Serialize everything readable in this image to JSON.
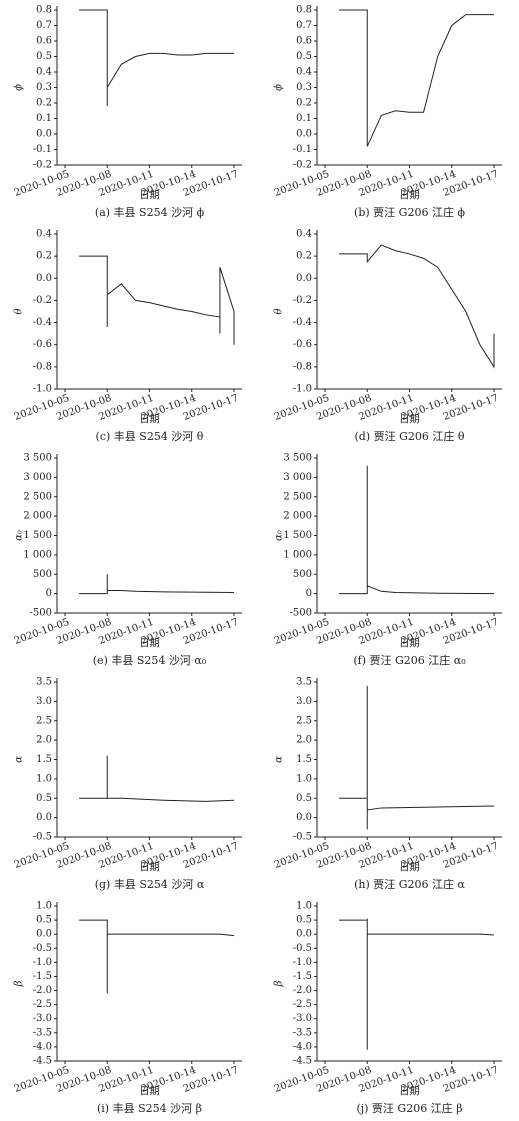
{
  "chart_data": [
    {
      "type": "line",
      "title": "(a) 丰县 S254 沙河 ϕ",
      "xlabel": "日期",
      "ylabel": "ϕ",
      "color": "#222222",
      "x": [
        "2020-10-06",
        "2020-10-08",
        "2020-10-08",
        "2020-10-08",
        "2020-10-09",
        "2020-10-10",
        "2020-10-11",
        "2020-10-12",
        "2020-10-13",
        "2020-10-14",
        "2020-10-15",
        "2020-10-16",
        "2020-10-17"
      ],
      "values": [
        0.8,
        0.8,
        0.18,
        0.3,
        0.45,
        0.5,
        0.52,
        0.52,
        0.51,
        0.51,
        0.52,
        0.52,
        0.52
      ],
      "ylim": [
        -0.2,
        0.8
      ],
      "yticks": [
        -0.2,
        -0.1,
        {
          "value": 0,
          "label": "0.0"
        },
        0.1,
        0.2,
        0.3,
        0.4,
        0.5,
        0.6,
        0.7,
        0.8
      ],
      "xlim": [
        "2020-10-05",
        "2020-10-17"
      ],
      "xticks": [
        "2020-10-05",
        "2020-10-08",
        "2020-10-11",
        "2020-10-14",
        "2020-10-17"
      ]
    },
    {
      "type": "line",
      "title": "(b) 贾汪 G206 江庄 ϕ",
      "xlabel": "日期",
      "ylabel": "ϕ",
      "color": "#222222",
      "x": [
        "2020-10-06",
        "2020-10-08",
        "2020-10-08",
        "2020-10-09",
        "2020-10-10",
        "2020-10-11",
        "2020-10-12",
        "2020-10-13",
        "2020-10-14",
        "2020-10-15",
        "2020-10-16",
        "2020-10-17"
      ],
      "values": [
        0.8,
        0.8,
        -0.08,
        0.12,
        0.15,
        0.14,
        0.14,
        0.5,
        0.7,
        0.77,
        0.77,
        0.77
      ],
      "ylim": [
        -0.2,
        0.8
      ],
      "yticks": [
        -0.2,
        -0.1,
        {
          "value": 0,
          "label": "0.0"
        },
        0.1,
        0.2,
        0.3,
        0.4,
        0.5,
        0.6,
        0.7,
        0.8
      ],
      "xlim": [
        "2020-10-05",
        "2020-10-17"
      ],
      "xticks": [
        "2020-10-05",
        "2020-10-08",
        "2020-10-11",
        "2020-10-14",
        "2020-10-17"
      ]
    },
    {
      "type": "line",
      "title": "(c) 丰县 S254 沙河 θ",
      "xlabel": "日期",
      "ylabel": "θ",
      "color": "#222222",
      "x": [
        "2020-10-06",
        "2020-10-08",
        "2020-10-08",
        "2020-10-08",
        "2020-10-09",
        "2020-10-10",
        "2020-10-11",
        "2020-10-12",
        "2020-10-13",
        "2020-10-14",
        "2020-10-15",
        "2020-10-16",
        "2020-10-16",
        "2020-10-16",
        "2020-10-17",
        "2020-10-17"
      ],
      "values": [
        0.2,
        0.2,
        -0.44,
        -0.15,
        -0.05,
        -0.2,
        -0.22,
        -0.25,
        -0.28,
        -0.3,
        -0.33,
        -0.35,
        -0.5,
        0.1,
        -0.3,
        -0.6
      ],
      "ylim": [
        -1.0,
        0.4
      ],
      "yticks": [
        {
          "value": -1,
          "label": "-1.0"
        },
        -0.8,
        -0.6,
        -0.4,
        -0.2,
        {
          "value": 0,
          "label": "0.0"
        },
        0.2,
        0.4
      ],
      "xlim": [
        "2020-10-05",
        "2020-10-17"
      ],
      "xticks": [
        "2020-10-05",
        "2020-10-08",
        "2020-10-11",
        "2020-10-14",
        "2020-10-17"
      ]
    },
    {
      "type": "line",
      "title": "(d) 贾汪 G206 江庄 θ",
      "xlabel": "日期",
      "ylabel": "θ",
      "color": "#222222",
      "x": [
        "2020-10-06",
        "2020-10-08",
        "2020-10-08",
        "2020-10-09",
        "2020-10-10",
        "2020-10-11",
        "2020-10-12",
        "2020-10-13",
        "2020-10-14",
        "2020-10-15",
        "2020-10-16",
        "2020-10-17",
        "2020-10-17"
      ],
      "values": [
        0.22,
        0.22,
        0.15,
        0.3,
        0.25,
        0.22,
        0.18,
        0.1,
        -0.1,
        -0.3,
        -0.6,
        -0.8,
        -0.5
      ],
      "ylim": [
        -1.0,
        0.4
      ],
      "yticks": [
        {
          "value": -1,
          "label": "-1.0"
        },
        -0.8,
        -0.6,
        -0.4,
        -0.2,
        {
          "value": 0,
          "label": "0.0"
        },
        0.2,
        0.4
      ],
      "xlim": [
        "2020-10-05",
        "2020-10-17"
      ],
      "xticks": [
        "2020-10-05",
        "2020-10-08",
        "2020-10-11",
        "2020-10-14",
        "2020-10-17"
      ]
    },
    {
      "type": "line",
      "title": "(e) 丰县 S254 沙河 α₀",
      "xlabel": "日期",
      "ylabel": "α₀",
      "color": "#222222",
      "x": [
        "2020-10-06",
        "2020-10-08",
        "2020-10-08",
        "2020-10-08",
        "2020-10-09",
        "2020-10-10",
        "2020-10-12",
        "2020-10-14",
        "2020-10-17"
      ],
      "values": [
        0,
        0,
        500,
        80,
        80,
        60,
        45,
        40,
        30
      ],
      "ylim": [
        -500,
        3500
      ],
      "yticks": [
        -500,
        0,
        500,
        {
          "value": 1000,
          "label": "1 000"
        },
        {
          "value": 1500,
          "label": "1 500"
        },
        {
          "value": 2000,
          "label": "2 000"
        },
        {
          "value": 2500,
          "label": "2 500"
        },
        {
          "value": 3000,
          "label": "3 000"
        },
        {
          "value": 3500,
          "label": "3 500"
        }
      ],
      "xlim": [
        "2020-10-05",
        "2020-10-17"
      ],
      "xticks": [
        "2020-10-05",
        "2020-10-08",
        "2020-10-11",
        "2020-10-14",
        "2020-10-17"
      ]
    },
    {
      "type": "line",
      "title": "(f) 贾汪 G206 江庄 α₀",
      "xlabel": "日期",
      "ylabel": "α₀",
      "color": "#222222",
      "x": [
        "2020-10-06",
        "2020-10-08",
        "2020-10-08",
        "2020-10-08",
        "2020-10-09",
        "2020-10-10",
        "2020-10-13",
        "2020-10-17"
      ],
      "values": [
        0,
        0,
        3300,
        200,
        60,
        30,
        10,
        0
      ],
      "ylim": [
        -500,
        3500
      ],
      "yticks": [
        -500,
        0,
        500,
        {
          "value": 1000,
          "label": "1 000"
        },
        {
          "value": 1500,
          "label": "1 500"
        },
        {
          "value": 2000,
          "label": "2 000"
        },
        {
          "value": 2500,
          "label": "2 500"
        },
        {
          "value": 3000,
          "label": "3 000"
        },
        {
          "value": 3500,
          "label": "3 500"
        }
      ],
      "xlim": [
        "2020-10-05",
        "2020-10-17"
      ],
      "xticks": [
        "2020-10-05",
        "2020-10-08",
        "2020-10-11",
        "2020-10-14",
        "2020-10-17"
      ]
    },
    {
      "type": "line",
      "title": "(g) 丰县 S254 沙河 α",
      "xlabel": "日期",
      "ylabel": "α",
      "color": "#222222",
      "x": [
        "2020-10-06",
        "2020-10-08",
        "2020-10-08",
        "2020-10-08",
        "2020-10-09",
        "2020-10-12",
        "2020-10-15",
        "2020-10-17"
      ],
      "values": [
        0.5,
        0.5,
        1.6,
        0.5,
        0.5,
        0.45,
        0.42,
        0.45
      ],
      "ylim": [
        -0.5,
        3.5
      ],
      "yticks": [
        -0.5,
        {
          "value": 0,
          "label": "0.0"
        },
        0.5,
        {
          "value": 1,
          "label": "1.0"
        },
        1.5,
        {
          "value": 2,
          "label": "2.0"
        },
        2.5,
        {
          "value": 3,
          "label": "3.0"
        },
        3.5
      ],
      "xlim": [
        "2020-10-05",
        "2020-10-17"
      ],
      "xticks": [
        "2020-10-05",
        "2020-10-08",
        "2020-10-11",
        "2020-10-14",
        "2020-10-17"
      ]
    },
    {
      "type": "line",
      "title": "(h) 贾汪 G206 江庄 α",
      "xlabel": "日期",
      "ylabel": "α",
      "color": "#222222",
      "x": [
        "2020-10-06",
        "2020-10-08",
        "2020-10-08",
        "2020-10-08",
        "2020-10-08",
        "2020-10-09",
        "2020-10-17"
      ],
      "values": [
        0.5,
        0.5,
        3.4,
        -0.3,
        0.2,
        0.25,
        0.3
      ],
      "ylim": [
        -0.5,
        3.5
      ],
      "yticks": [
        -0.5,
        {
          "value": 0,
          "label": "0.0"
        },
        0.5,
        {
          "value": 1,
          "label": "1.0"
        },
        1.5,
        {
          "value": 2,
          "label": "2.0"
        },
        2.5,
        {
          "value": 3,
          "label": "3.0"
        },
        3.5
      ],
      "xlim": [
        "2020-10-05",
        "2020-10-17"
      ],
      "xticks": [
        "2020-10-05",
        "2020-10-08",
        "2020-10-11",
        "2020-10-14",
        "2020-10-17"
      ]
    },
    {
      "type": "line",
      "title": "(i) 丰县 S254 沙河 β",
      "xlabel": "日期",
      "ylabel": "β",
      "color": "#222222",
      "x": [
        "2020-10-06",
        "2020-10-08",
        "2020-10-08",
        "2020-10-08",
        "2020-10-16",
        "2020-10-17"
      ],
      "values": [
        0.5,
        0.5,
        -2.1,
        0,
        0,
        -0.05
      ],
      "ylim": [
        -4.5,
        1.0
      ],
      "yticks": [
        -4.5,
        {
          "value": -4,
          "label": "-4.0"
        },
        -3.5,
        {
          "value": -3,
          "label": "-3.0"
        },
        -2.5,
        {
          "value": -2,
          "label": "-2.0"
        },
        -1.5,
        {
          "value": -1,
          "label": "-1.0"
        },
        -0.5,
        {
          "value": 0,
          "label": "0.0"
        },
        0.5,
        {
          "value": 1,
          "label": "1.0"
        }
      ],
      "xlim": [
        "2020-10-05",
        "2020-10-17"
      ],
      "xticks": [
        "2020-10-05",
        "2020-10-08",
        "2020-10-11",
        "2020-10-14",
        "2020-10-17"
      ]
    },
    {
      "type": "line",
      "title": "(j) 贾汪 G206 江庄 β",
      "xlabel": "日期",
      "ylabel": "β",
      "color": "#222222",
      "x": [
        "2020-10-06",
        "2020-10-08",
        "2020-10-08",
        "2020-10-08",
        "2020-10-08",
        "2020-10-16",
        "2020-10-17"
      ],
      "values": [
        0.5,
        0.5,
        0.55,
        -4.1,
        0,
        0,
        -0.03
      ],
      "ylim": [
        -4.5,
        1.0
      ],
      "yticks": [
        -4.5,
        {
          "value": -4,
          "label": "-4.0"
        },
        -3.5,
        {
          "value": -3,
          "label": "-3.0"
        },
        -2.5,
        {
          "value": -2,
          "label": "-2.0"
        },
        -1.5,
        {
          "value": -1,
          "label": "-1.0"
        },
        -0.5,
        {
          "value": 0,
          "label": "0.0"
        },
        0.5,
        {
          "value": 1,
          "label": "1.0"
        }
      ],
      "xlim": [
        "2020-10-05",
        "2020-10-17"
      ],
      "xticks": [
        "2020-10-05",
        "2020-10-08",
        "2020-10-11",
        "2020-10-14",
        "2020-10-17"
      ]
    }
  ]
}
